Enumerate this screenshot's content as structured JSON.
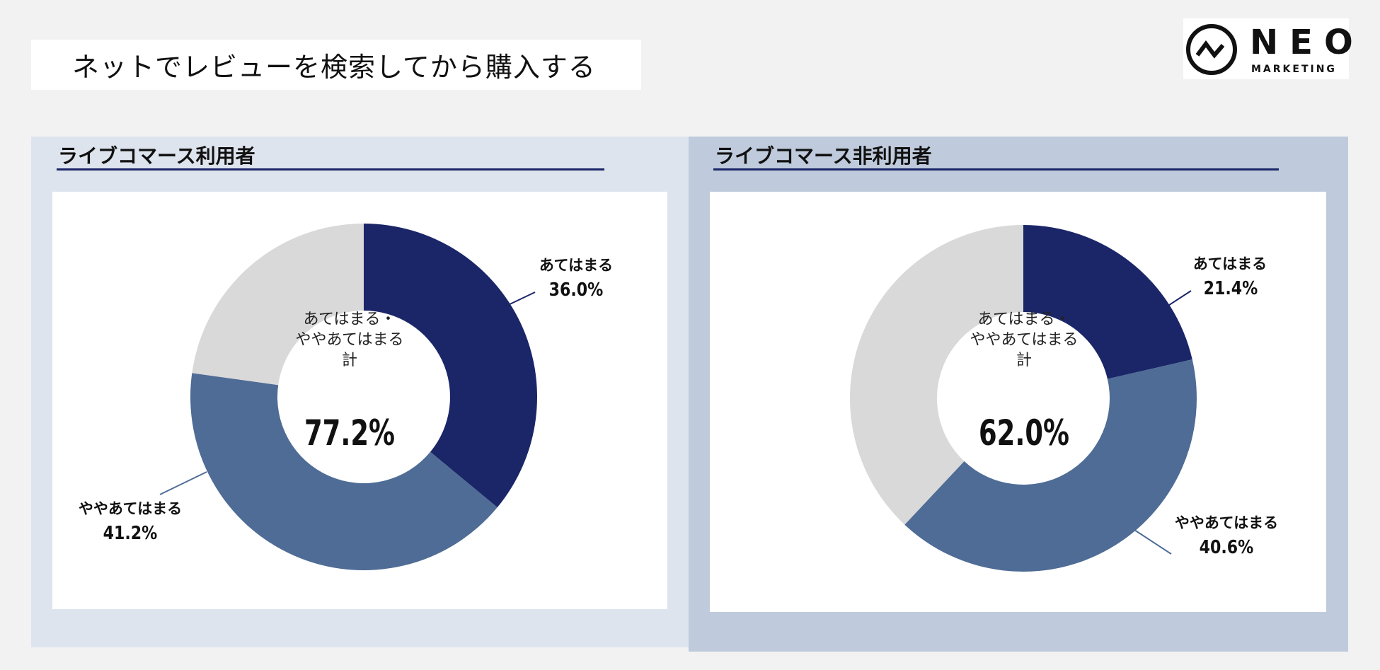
{
  "page": {
    "title": "ネットでレビューを検索してから購入する"
  },
  "logo": {
    "name": "NEO",
    "sub": "MARKETING"
  },
  "colors": {
    "strong": "#1b2668",
    "medium": "#4e6c95",
    "rest": "#d9d9d9"
  },
  "chart_data": [
    {
      "type": "pie",
      "title": "ライブコマース利用者",
      "center_label": [
        "あてはまる・",
        "ややあてはまる",
        "計"
      ],
      "center_total": "77.2%",
      "slices": [
        {
          "label": "あてはまる",
          "value": 36.0,
          "display": "36.0%"
        },
        {
          "label": "ややあてはまる",
          "value": 41.2,
          "display": "41.2%"
        },
        {
          "label": "",
          "value": 22.8,
          "display": ""
        }
      ]
    },
    {
      "type": "pie",
      "title": "ライブコマース非利用者",
      "center_label": [
        "あてはまる・",
        "ややあてはまる",
        "計"
      ],
      "center_total": "62.0%",
      "slices": [
        {
          "label": "あてはまる",
          "value": 21.4,
          "display": "21.4%"
        },
        {
          "label": "ややあてはまる",
          "value": 40.6,
          "display": "40.6%"
        },
        {
          "label": "",
          "value": 38.0,
          "display": ""
        }
      ]
    }
  ]
}
